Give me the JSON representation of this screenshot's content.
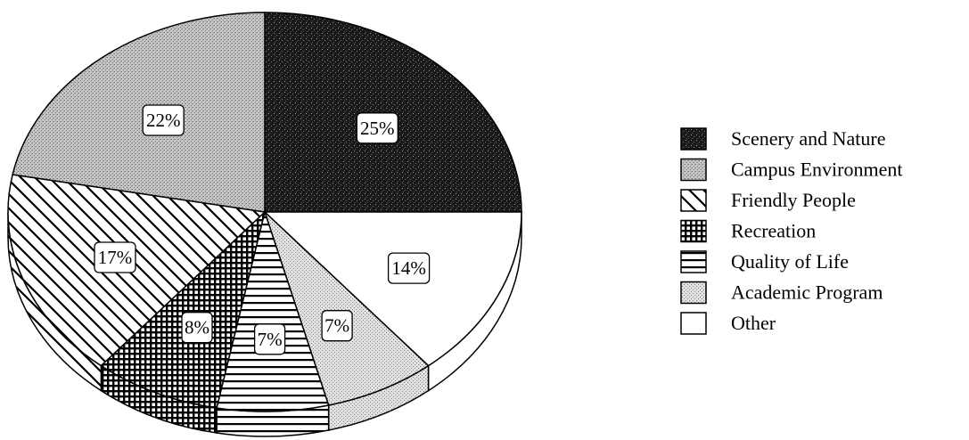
{
  "chart_data": {
    "type": "pie",
    "three_d": true,
    "legend_position": "right",
    "slices": [
      {
        "label": "Scenery and Nature",
        "value": 25,
        "data_label": "25%",
        "pattern": "dark-speckle"
      },
      {
        "label": "Other",
        "value": 14,
        "data_label": "14%",
        "pattern": "white"
      },
      {
        "label": "Academic Program",
        "value": 7,
        "data_label": "7%",
        "pattern": "light-dots"
      },
      {
        "label": "Quality of Life",
        "value": 7,
        "data_label": "7%",
        "pattern": "horizontal-lines"
      },
      {
        "label": "Recreation",
        "value": 8,
        "data_label": "8%",
        "pattern": "cross-hatch"
      },
      {
        "label": "Friendly People",
        "value": 17,
        "data_label": "17%",
        "pattern": "diagonal-lines"
      },
      {
        "label": "Campus Environment",
        "value": 22,
        "data_label": "22%",
        "pattern": "medium-dots"
      }
    ],
    "legend": [
      {
        "label": "Scenery and Nature",
        "pattern": "dark-speckle"
      },
      {
        "label": "Campus Environment",
        "pattern": "medium-dots"
      },
      {
        "label": "Friendly People",
        "pattern": "diagonal-lines"
      },
      {
        "label": "Recreation",
        "pattern": "cross-hatch"
      },
      {
        "label": "Quality of Life",
        "pattern": "horizontal-lines"
      },
      {
        "label": "Academic Program",
        "pattern": "light-dots"
      },
      {
        "label": "Other",
        "pattern": "white"
      }
    ]
  }
}
